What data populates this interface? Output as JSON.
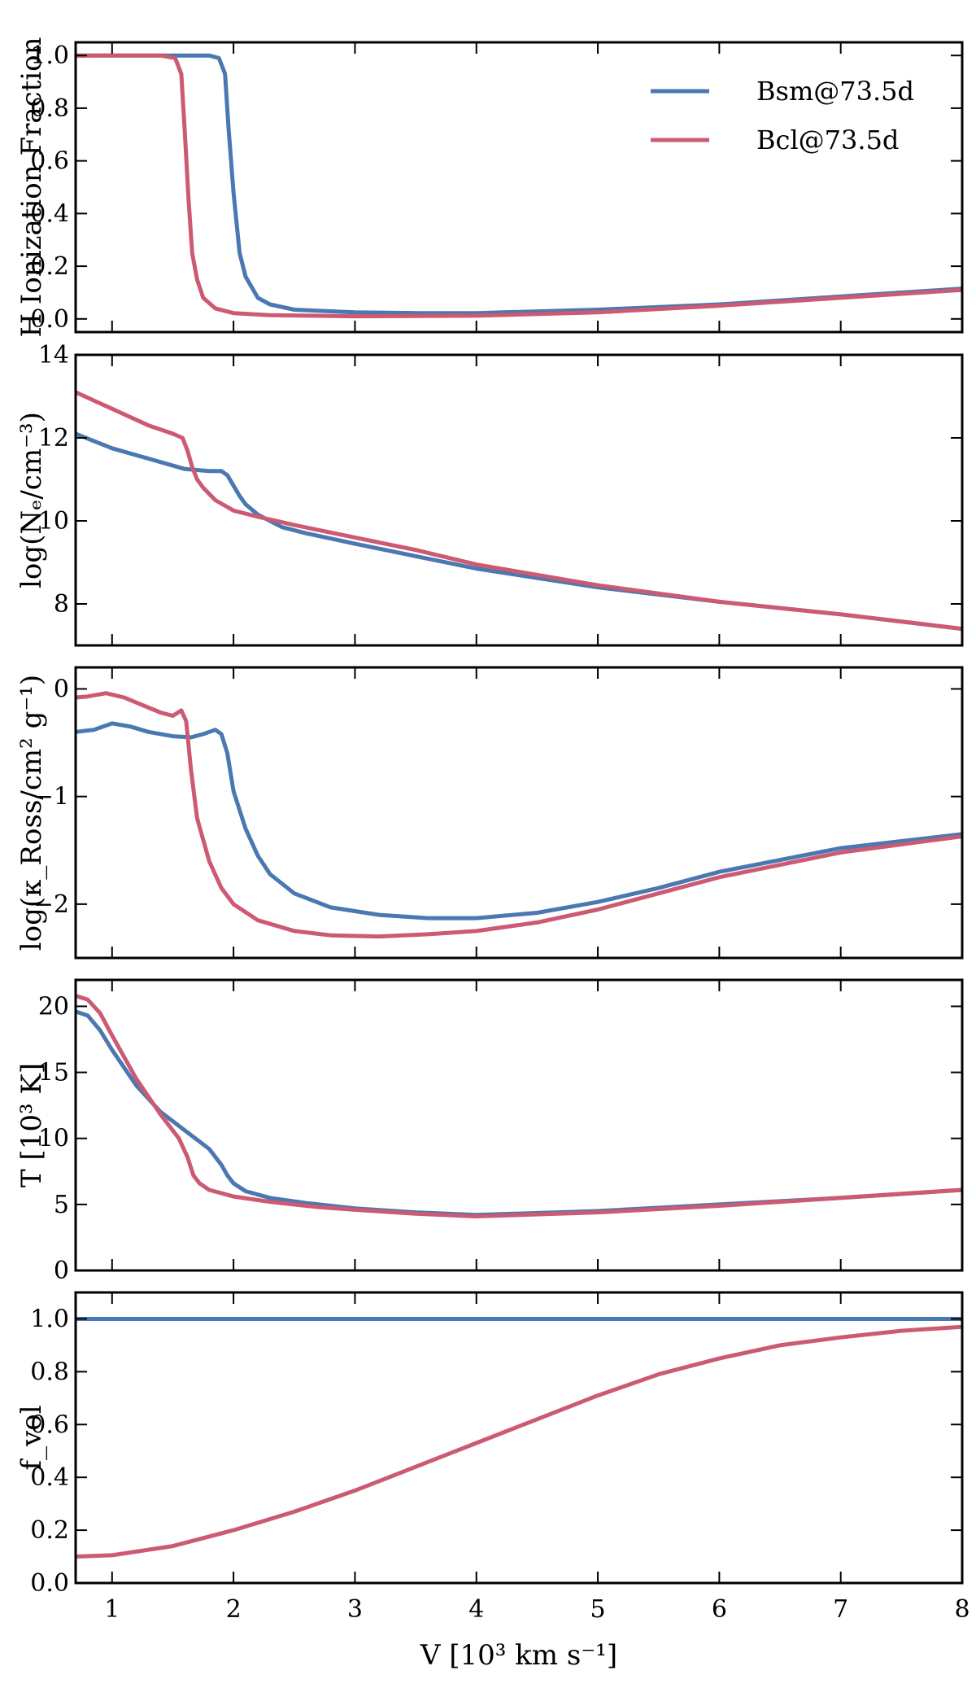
{
  "chart_data": {
    "type": "line",
    "layout": "stacked-panels-shared-x",
    "xlabel": "V [10³ km s⁻¹]",
    "xlim": [
      0.7,
      8.0
    ],
    "xticks": [
      1,
      2,
      3,
      4,
      5,
      6,
      7,
      8
    ],
    "legend": {
      "placement": "top-right",
      "panel": 0,
      "entries": [
        "Bsm@73.5d",
        "Bcl@73.5d"
      ]
    },
    "series_colors": {
      "Bsm@73.5d": "#4a78b0",
      "Bcl@73.5d": "#cc5a72"
    },
    "panels": [
      {
        "ylabel": "H Ionization Fraction",
        "ylim": [
          -0.05,
          1.05
        ],
        "yticks": [
          0.0,
          0.2,
          0.4,
          0.6,
          0.8,
          1.0
        ],
        "ytick_labels": [
          "0.0",
          "0.2",
          "0.4",
          "0.6",
          "0.8",
          "1.0"
        ],
        "series": [
          {
            "name": "Bsm@73.5d",
            "x": [
              0.7,
              1.5,
              1.8,
              1.88,
              1.93,
              1.96,
              2.0,
              2.05,
              2.1,
              2.2,
              2.3,
              2.5,
              3.0,
              3.5,
              4.0,
              5.0,
              6.0,
              7.0,
              8.0
            ],
            "y": [
              1.0,
              1.0,
              1.0,
              0.99,
              0.93,
              0.72,
              0.48,
              0.25,
              0.16,
              0.08,
              0.055,
              0.035,
              0.025,
              0.022,
              0.022,
              0.035,
              0.055,
              0.085,
              0.115
            ]
          },
          {
            "name": "Bcl@73.5d",
            "x": [
              0.7,
              1.4,
              1.52,
              1.57,
              1.6,
              1.63,
              1.66,
              1.7,
              1.75,
              1.85,
              2.0,
              2.3,
              3.0,
              4.0,
              5.0,
              6.0,
              7.0,
              8.0
            ],
            "y": [
              1.0,
              1.0,
              0.99,
              0.93,
              0.7,
              0.45,
              0.25,
              0.15,
              0.08,
              0.04,
              0.022,
              0.014,
              0.01,
              0.012,
              0.025,
              0.05,
              0.08,
              0.11
            ]
          }
        ]
      },
      {
        "ylabel": "log(Nₑ/cm⁻³)",
        "ylim": [
          7.0,
          14.0
        ],
        "yticks": [
          8,
          10,
          12,
          14
        ],
        "ytick_labels": [
          "8",
          "10",
          "12",
          "14"
        ],
        "series": [
          {
            "name": "Bsm@73.5d",
            "x": [
              0.7,
              1.0,
              1.3,
              1.6,
              1.8,
              1.9,
              1.95,
              2.0,
              2.05,
              2.1,
              2.2,
              2.4,
              2.6,
              3.0,
              3.5,
              4.0,
              5.0,
              6.0,
              7.0,
              8.0
            ],
            "y": [
              12.1,
              11.75,
              11.5,
              11.25,
              11.2,
              11.2,
              11.1,
              10.85,
              10.6,
              10.4,
              10.15,
              9.85,
              9.7,
              9.45,
              9.15,
              8.85,
              8.4,
              8.05,
              7.75,
              7.4
            ]
          },
          {
            "name": "Bcl@73.5d",
            "x": [
              0.7,
              1.0,
              1.3,
              1.5,
              1.58,
              1.62,
              1.66,
              1.7,
              1.75,
              1.85,
              2.0,
              2.2,
              2.5,
              3.0,
              3.5,
              4.0,
              5.0,
              6.0,
              7.0,
              8.0
            ],
            "y": [
              13.1,
              12.7,
              12.3,
              12.1,
              12.0,
              11.7,
              11.3,
              11.0,
              10.8,
              10.5,
              10.25,
              10.1,
              9.9,
              9.6,
              9.3,
              8.95,
              8.45,
              8.05,
              7.75,
              7.4
            ]
          }
        ]
      },
      {
        "ylabel": "log(κ_Ross/cm² g⁻¹)",
        "ylim": [
          -2.5,
          0.2
        ],
        "yticks": [
          -2,
          -1,
          0
        ],
        "ytick_labels": [
          "−2",
          "−1",
          "0"
        ],
        "series": [
          {
            "name": "Bsm@73.5d",
            "x": [
              0.7,
              0.85,
              1.0,
              1.15,
              1.3,
              1.5,
              1.65,
              1.75,
              1.85,
              1.9,
              1.95,
              2.0,
              2.1,
              2.2,
              2.3,
              2.5,
              2.8,
              3.2,
              3.6,
              4.0,
              4.5,
              5.0,
              5.5,
              6.0,
              7.0,
              8.0
            ],
            "y": [
              -0.4,
              -0.38,
              -0.32,
              -0.35,
              -0.4,
              -0.44,
              -0.45,
              -0.42,
              -0.38,
              -0.42,
              -0.6,
              -0.95,
              -1.3,
              -1.55,
              -1.72,
              -1.9,
              -2.03,
              -2.1,
              -2.13,
              -2.13,
              -2.08,
              -1.98,
              -1.85,
              -1.7,
              -1.48,
              -1.35
            ]
          },
          {
            "name": "Bcl@73.5d",
            "x": [
              0.7,
              0.8,
              0.95,
              1.1,
              1.25,
              1.4,
              1.5,
              1.57,
              1.61,
              1.65,
              1.7,
              1.8,
              1.9,
              2.0,
              2.2,
              2.5,
              2.8,
              3.2,
              3.6,
              4.0,
              4.5,
              5.0,
              5.5,
              6.0,
              7.0,
              8.0
            ],
            "y": [
              -0.08,
              -0.07,
              -0.04,
              -0.08,
              -0.15,
              -0.22,
              -0.25,
              -0.2,
              -0.3,
              -0.75,
              -1.2,
              -1.6,
              -1.85,
              -2.0,
              -2.15,
              -2.25,
              -2.29,
              -2.3,
              -2.28,
              -2.25,
              -2.17,
              -2.05,
              -1.9,
              -1.75,
              -1.52,
              -1.37
            ]
          }
        ]
      },
      {
        "ylabel": "T [10³ K]",
        "ylim": [
          0,
          22
        ],
        "yticks": [
          0,
          5,
          10,
          15,
          20
        ],
        "ytick_labels": [
          "0",
          "5",
          "10",
          "15",
          "20"
        ],
        "series": [
          {
            "name": "Bsm@73.5d",
            "x": [
              0.7,
              0.8,
              0.9,
              1.0,
              1.2,
              1.4,
              1.6,
              1.8,
              1.9,
              1.95,
              2.0,
              2.1,
              2.3,
              2.6,
              3.0,
              3.5,
              4.0,
              5.0,
              6.0,
              7.0,
              8.0
            ],
            "y": [
              19.6,
              19.3,
              18.2,
              16.7,
              14.0,
              12.0,
              10.6,
              9.2,
              8.0,
              7.2,
              6.6,
              6.0,
              5.5,
              5.1,
              4.7,
              4.4,
              4.2,
              4.5,
              5.0,
              5.5,
              6.1
            ]
          },
          {
            "name": "Bcl@73.5d",
            "x": [
              0.7,
              0.8,
              0.9,
              1.0,
              1.2,
              1.4,
              1.55,
              1.62,
              1.67,
              1.72,
              1.8,
              2.0,
              2.3,
              2.7,
              3.0,
              3.5,
              4.0,
              5.0,
              6.0,
              7.0,
              8.0
            ],
            "y": [
              20.8,
              20.5,
              19.5,
              17.8,
              14.5,
              11.8,
              10.0,
              8.6,
              7.2,
              6.6,
              6.1,
              5.6,
              5.2,
              4.8,
              4.6,
              4.3,
              4.1,
              4.4,
              4.9,
              5.5,
              6.1
            ]
          }
        ]
      },
      {
        "ylabel": "f_vol",
        "ylim": [
          0.0,
          1.1
        ],
        "yticks": [
          0.0,
          0.2,
          0.4,
          0.6,
          0.8,
          1.0
        ],
        "ytick_labels": [
          "0.0",
          "0.2",
          "0.4",
          "0.6",
          "0.8",
          "1.0"
        ],
        "series": [
          {
            "name": "Bsm@73.5d",
            "x": [
              0.7,
              8.0
            ],
            "y": [
              1.0,
              1.0
            ]
          },
          {
            "name": "Bcl@73.5d",
            "x": [
              0.7,
              1.0,
              1.5,
              2.0,
              2.5,
              3.0,
              3.5,
              4.0,
              4.5,
              5.0,
              5.5,
              6.0,
              6.5,
              7.0,
              7.5,
              8.0
            ],
            "y": [
              0.1,
              0.105,
              0.14,
              0.2,
              0.27,
              0.35,
              0.44,
              0.53,
              0.62,
              0.71,
              0.79,
              0.85,
              0.9,
              0.93,
              0.955,
              0.97
            ]
          }
        ]
      }
    ]
  }
}
